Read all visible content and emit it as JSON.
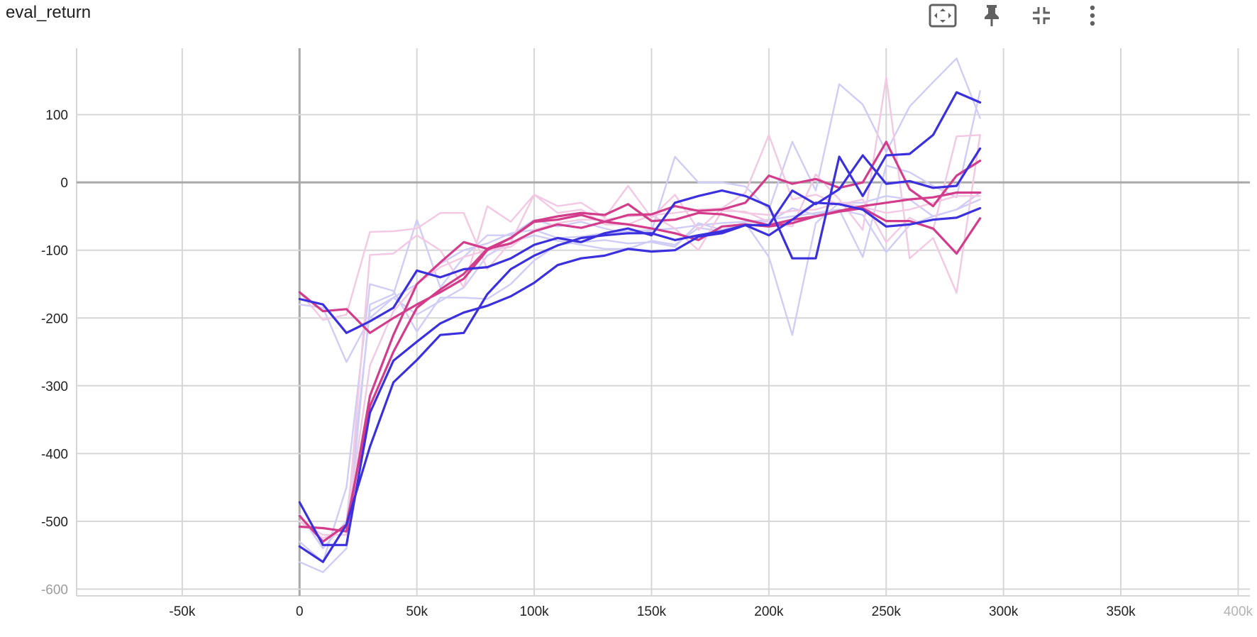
{
  "title": "eval_return",
  "toolbar": [
    {
      "name": "fit-domain-icon",
      "label": "Fit domain to data"
    },
    {
      "name": "pin-icon",
      "label": "Pin card"
    },
    {
      "name": "collapse-icon",
      "label": "Collapse"
    },
    {
      "name": "more-vert-icon",
      "label": "More"
    }
  ],
  "colors": {
    "dark_blue": "#3b30de",
    "light_blue": "#cfcdf6",
    "dark_pink": "#d23c8a",
    "light_pink": "#f3c8e3",
    "grid": "#d6d6d6",
    "axis_zero": "#a8a8a8",
    "icon": "#616161"
  },
  "chart_data": {
    "type": "line",
    "title": "eval_return",
    "xlabel": "",
    "ylabel": "",
    "xlim": [
      -95000,
      405000
    ],
    "ylim": [
      -610,
      198
    ],
    "grid": true,
    "x_ticks": [
      -50000,
      0,
      50000,
      100000,
      150000,
      200000,
      250000,
      300000,
      350000,
      400000
    ],
    "x_tick_labels": [
      "-50k",
      "0",
      "50k",
      "100k",
      "150k",
      "200k",
      "250k",
      "300k",
      "350k",
      "400k"
    ],
    "y_ticks": [
      100,
      0,
      -100,
      -200,
      -300,
      -400,
      -500,
      -600
    ],
    "y_tick_labels": [
      "100",
      "0",
      "-100",
      "-200",
      "-300",
      "-400",
      "-500",
      "-600"
    ],
    "x": [
      0,
      10000,
      20000,
      30000,
      40000,
      50000,
      60000,
      70000,
      80000,
      90000,
      100000,
      110000,
      120000,
      130000,
      140000,
      150000,
      160000,
      170000,
      180000,
      190000,
      200000,
      210000,
      220000,
      230000,
      240000,
      250000,
      260000,
      270000,
      280000,
      290000
    ],
    "series": [
      {
        "color": "light_blue",
        "width": 2.4,
        "values": [
          -560,
          -575,
          -540,
          -180,
          -165,
          -55,
          -155,
          -110,
          -78,
          -78,
          -55,
          -65,
          -58,
          -68,
          -76,
          -72,
          38,
          0,
          0,
          -6,
          -40,
          60,
          -12,
          145,
          115,
          45,
          112,
          148,
          183,
          95
        ]
      },
      {
        "color": "light_blue",
        "width": 2.4,
        "values": [
          -530,
          -560,
          -450,
          -150,
          -160,
          -220,
          -170,
          -170,
          -172,
          -150,
          -115,
          -92,
          -88,
          -85,
          -90,
          -88,
          -95,
          -60,
          -70,
          -60,
          -110,
          -225,
          -60,
          -30,
          -30,
          -20,
          -25,
          -50,
          -40,
          -15
        ]
      },
      {
        "color": "light_blue",
        "width": 2.4,
        "values": [
          -490,
          -540,
          -500,
          -190,
          -170,
          -195,
          -175,
          -155,
          -108,
          -88,
          -78,
          -86,
          -92,
          -98,
          -98,
          -86,
          -92,
          -67,
          -72,
          -58,
          -58,
          -38,
          -48,
          -40,
          -110,
          25,
          15,
          -5,
          -22,
          135
        ]
      },
      {
        "color": "light_blue",
        "width": 2.4,
        "values": [
          -180,
          -185,
          -265,
          -200,
          -170,
          -150,
          -120,
          -100,
          -90,
          -75,
          -70,
          -82,
          -80,
          -75,
          -72,
          -70,
          -68,
          -63,
          -60,
          -58,
          -55,
          -50,
          -45,
          -40,
          -48,
          -103,
          -63,
          -50,
          -40,
          -25
        ]
      },
      {
        "color": "light_pink",
        "width": 2.4,
        "values": [
          -162,
          -203,
          -195,
          -73,
          -72,
          -68,
          -45,
          -45,
          -128,
          -88,
          -18,
          -45,
          -40,
          -62,
          -62,
          -48,
          -68,
          -100,
          -42,
          -43,
          -58,
          -65,
          12,
          -25,
          -70,
          155,
          -112,
          -82,
          -163,
          70
        ]
      },
      {
        "color": "light_pink",
        "width": 2.4,
        "values": [
          -500,
          -520,
          -520,
          -107,
          -105,
          -78,
          -100,
          -155,
          -35,
          -58,
          -18,
          -35,
          -30,
          -52,
          -5,
          -52,
          -18,
          -70,
          -38,
          -15,
          70,
          -25,
          -18,
          -33,
          -25,
          -88,
          -52,
          -70,
          68,
          70
        ]
      },
      {
        "color": "light_pink",
        "width": 2.4,
        "values": [
          -500,
          -525,
          -510,
          -270,
          -190,
          -150,
          -125,
          -110,
          -100,
          -95,
          -70,
          -60,
          -55,
          -55,
          -50,
          -48,
          -45,
          -40,
          -38,
          -45,
          -48,
          -42,
          -40,
          -30,
          -36,
          -45,
          -40,
          -30,
          -20,
          -20
        ]
      },
      {
        "color": "dark_pink",
        "width": 3.2,
        "values": [
          -162,
          -190,
          -187,
          -222,
          -200,
          -180,
          -162,
          -142,
          -100,
          -82,
          -58,
          -55,
          -48,
          -58,
          -48,
          -47,
          -35,
          -42,
          -40,
          -30,
          10,
          -2,
          5,
          -8,
          0,
          60,
          -10,
          -35,
          10,
          32
        ]
      },
      {
        "color": "dark_pink",
        "width": 3.2,
        "values": [
          -508,
          -510,
          -515,
          -315,
          -225,
          -150,
          -118,
          -88,
          -98,
          -90,
          -72,
          -62,
          -67,
          -58,
          -62,
          -68,
          -75,
          -85,
          -65,
          -62,
          -65,
          -60,
          -50,
          -42,
          -35,
          -30,
          -25,
          -22,
          -15,
          -15
        ]
      },
      {
        "color": "dark_pink",
        "width": 3.2,
        "values": [
          -492,
          -530,
          -505,
          -330,
          -250,
          -185,
          -158,
          -135,
          -98,
          -82,
          -57,
          -50,
          -45,
          -48,
          -32,
          -57,
          -55,
          -45,
          -47,
          -55,
          -63,
          -55,
          -50,
          -43,
          -38,
          -57,
          -57,
          -68,
          -105,
          -53
        ]
      },
      {
        "color": "dark_blue",
        "width": 3.2,
        "values": [
          -172,
          -180,
          -222,
          -205,
          -185,
          -130,
          -140,
          -128,
          -125,
          -112,
          -92,
          -82,
          -88,
          -75,
          -68,
          -78,
          -30,
          -20,
          -12,
          -20,
          -35,
          -112,
          -112,
          38,
          -20,
          40,
          42,
          70,
          133,
          118
        ]
      },
      {
        "color": "dark_blue",
        "width": 3.2,
        "values": [
          -472,
          -535,
          -535,
          -340,
          -263,
          -235,
          -208,
          -192,
          -182,
          -168,
          -148,
          -122,
          -112,
          -108,
          -98,
          -102,
          -100,
          -80,
          -75,
          -63,
          -78,
          -55,
          -30,
          -32,
          -40,
          -65,
          -62,
          -55,
          -52,
          -38
        ]
      },
      {
        "color": "dark_blue",
        "width": 3.2,
        "values": [
          -537,
          -560,
          -505,
          -390,
          -295,
          -262,
          -225,
          -222,
          -165,
          -128,
          -108,
          -93,
          -82,
          -78,
          -75,
          -75,
          -85,
          -78,
          -72,
          -63,
          -63,
          -12,
          -32,
          -10,
          40,
          -2,
          2,
          -8,
          -5,
          50
        ]
      }
    ]
  }
}
